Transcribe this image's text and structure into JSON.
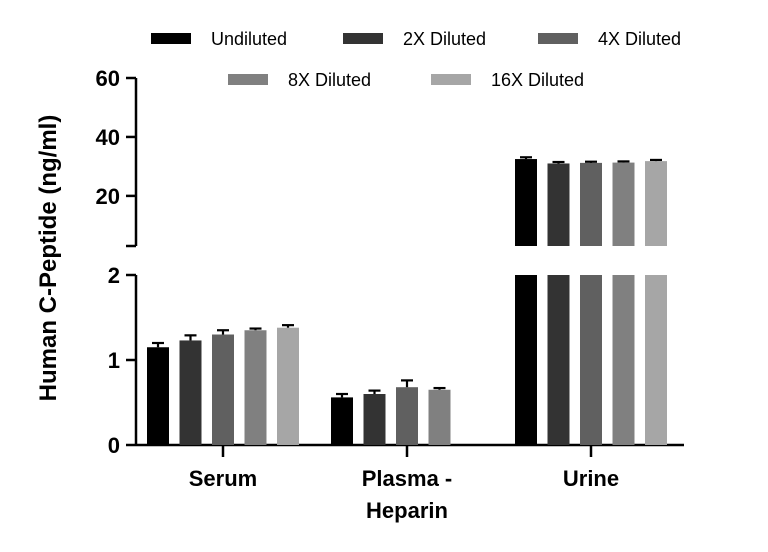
{
  "chart_data": {
    "type": "bar",
    "ylabel": "Human C-Peptide (ng/ml)",
    "categories": [
      [
        "Serum"
      ],
      [
        "Plasma -",
        "Heparin"
      ],
      [
        "Urine"
      ]
    ],
    "series": [
      {
        "name": "Undiluted",
        "color": "#000000",
        "values": [
          1.15,
          0.56,
          32.5
        ],
        "errors": [
          0.05,
          0.04,
          0.6
        ]
      },
      {
        "name": "2X Diluted",
        "color": "#333333",
        "values": [
          1.23,
          0.6,
          31.0
        ],
        "errors": [
          0.06,
          0.04,
          0.5
        ]
      },
      {
        "name": "4X Diluted",
        "color": "#606060",
        "values": [
          1.3,
          0.68,
          31.2
        ],
        "errors": [
          0.05,
          0.08,
          0.4
        ]
      },
      {
        "name": "8X Diluted",
        "color": "#808080",
        "values": [
          1.35,
          0.65,
          31.3
        ],
        "errors": [
          0.02,
          0.02,
          0.4
        ]
      },
      {
        "name": "16X Diluted",
        "color": "#a6a6a6",
        "values": [
          1.38,
          null,
          31.8
        ],
        "errors": [
          0.03,
          null,
          0.4
        ]
      }
    ],
    "y_axis_segments": [
      {
        "range": [
          0,
          2
        ],
        "ticks": [
          0,
          1,
          2
        ],
        "tick_labels": [
          "0",
          "1",
          "2"
        ]
      },
      {
        "range": [
          3,
          60
        ],
        "ticks": [
          20,
          40,
          60
        ],
        "tick_labels": [
          "20",
          "40",
          "60"
        ]
      }
    ],
    "axis_break": [
      2,
      3
    ],
    "legend": {
      "position": "top",
      "rows": [
        [
          0,
          1,
          2
        ],
        [
          3,
          4
        ]
      ]
    },
    "grid": false
  }
}
